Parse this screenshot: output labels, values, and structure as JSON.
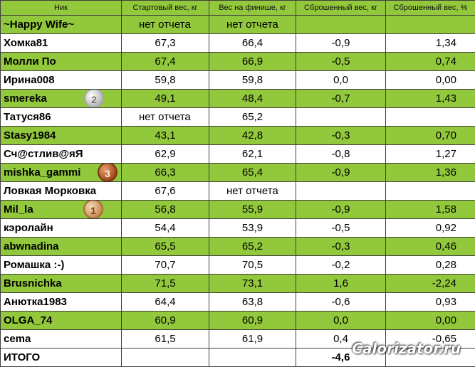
{
  "headers": [
    "Ник",
    "Стартовый вес, кг",
    "Вес на финише, кг",
    "Сброшенный вес, кг",
    "Сброшенный вес, %"
  ],
  "rows": [
    {
      "name": "~Happy Wife~",
      "start": "нет отчета",
      "finish": "нет отчета",
      "lost_kg": "",
      "lost_pct": ""
    },
    {
      "name": "Хомка81",
      "start": "67,3",
      "finish": "66,4",
      "lost_kg": "-0,9",
      "lost_pct": "1,34"
    },
    {
      "name": "Молли По",
      "start": "67,4",
      "finish": "66,9",
      "lost_kg": "-0,5",
      "lost_pct": "0,74"
    },
    {
      "name": "Ирина008",
      "start": "59,8",
      "finish": "59,8",
      "lost_kg": "0,0",
      "lost_pct": "0,00"
    },
    {
      "name": "smereka",
      "start": "49,1",
      "finish": "48,4",
      "lost_kg": "-0,7",
      "lost_pct": "1,43",
      "medal": "2"
    },
    {
      "name": "Татуся86",
      "start": "нет отчета",
      "finish": "65,2",
      "lost_kg": "",
      "lost_pct": ""
    },
    {
      "name": "Stasy1984",
      "start": "43,1",
      "finish": "42,8",
      "lost_kg": "-0,3",
      "lost_pct": "0,70"
    },
    {
      "name": "Сч@стлив@яЯ",
      "start": "62,9",
      "finish": "62,1",
      "lost_kg": "-0,8",
      "lost_pct": "1,27"
    },
    {
      "name": "mishka_gammi",
      "start": "66,3",
      "finish": "65,4",
      "lost_kg": "-0,9",
      "lost_pct": "1,36",
      "medal": "3"
    },
    {
      "name": "Ловкая Морковка",
      "start": "67,6",
      "finish": "нет отчета",
      "lost_kg": "",
      "lost_pct": ""
    },
    {
      "name": "Mil_la",
      "start": "56,8",
      "finish": "55,9",
      "lost_kg": "-0,9",
      "lost_pct": "1,58",
      "medal": "1"
    },
    {
      "name": "кэролайн",
      "start": "54,4",
      "finish": "53,9",
      "lost_kg": "-0,5",
      "lost_pct": "0,92"
    },
    {
      "name": "abwnadina",
      "start": "65,5",
      "finish": "65,2",
      "lost_kg": "-0,3",
      "lost_pct": "0,46"
    },
    {
      "name": "Ромашка :-)",
      "start": "70,7",
      "finish": "70,5",
      "lost_kg": "-0,2",
      "lost_pct": "0,28"
    },
    {
      "name": "Brusnichka",
      "start": "71,5",
      "finish": "73,1",
      "lost_kg": "1,6",
      "lost_pct": "-2,24"
    },
    {
      "name": "Анютка1983",
      "start": "64,4",
      "finish": "63,8",
      "lost_kg": "-0,6",
      "lost_pct": "0,93"
    },
    {
      "name": "OLGA_74",
      "start": "60,9",
      "finish": "60,9",
      "lost_kg": "0,0",
      "lost_pct": "0,00"
    },
    {
      "name": "сema",
      "start": "61,5",
      "finish": "61,9",
      "lost_kg": "0,4",
      "lost_pct": "-0,65"
    }
  ],
  "total": {
    "label": "ИТОГО",
    "lost_kg": "-4,6"
  },
  "watermark": "Calorizator.ru",
  "colors": {
    "row_green": "#92c83b",
    "row_white": "#ffffff",
    "border": "#3f3f3f"
  }
}
